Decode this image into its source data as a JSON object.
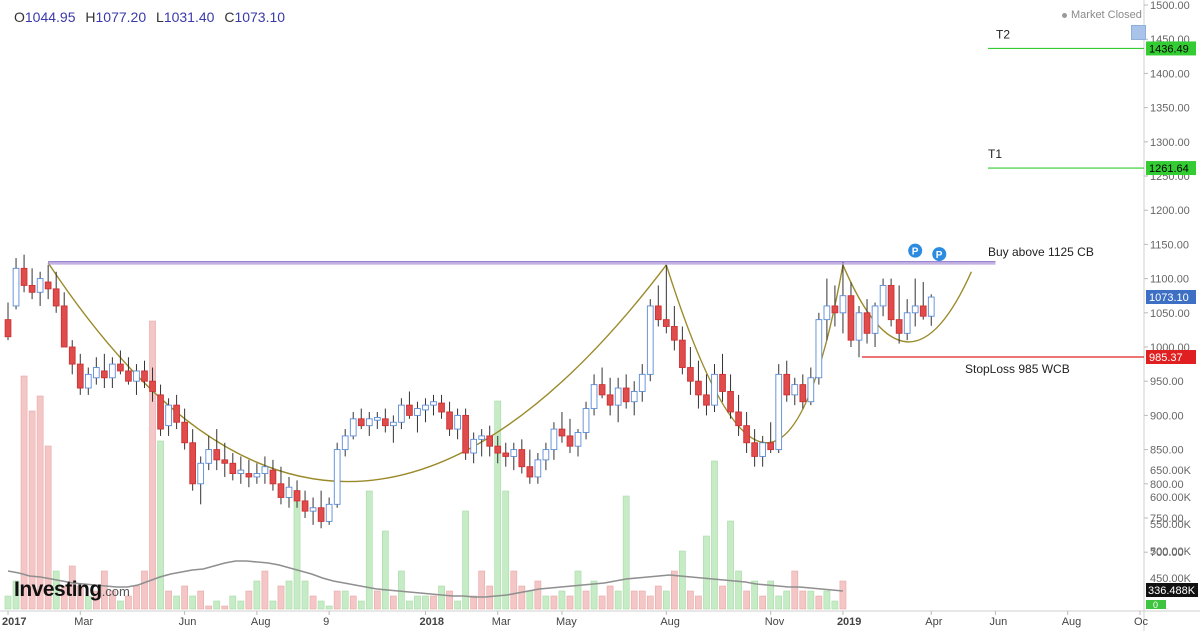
{
  "header": {
    "open_label": "O",
    "open": "1044.95",
    "high_label": "H",
    "high": "1077.20",
    "low_label": "L",
    "low": "1031.40",
    "close_label": "C",
    "close": "1073.10",
    "market_status": "Market Closed"
  },
  "logo": {
    "brand": "Investing",
    "domain": ".com"
  },
  "colors": {
    "up": "#ffffff",
    "up_border": "#5b8bd6",
    "down": "#e04b4b",
    "vol_up": "#c6ecc6",
    "vol_down": "#f4c6c6",
    "ma": "#8f8f8f",
    "resistance": "#b09ad8",
    "curve": "#9a8a2a",
    "target": "#33cc33",
    "stop": "#e02020"
  },
  "chart_data": {
    "type": "candlestick",
    "y_axis": {
      "min": 700,
      "max": 1500,
      "ticks": [
        700,
        750,
        800,
        850,
        900,
        950,
        1000,
        1050,
        1100,
        1150,
        1200,
        1250,
        1300,
        1350,
        1400,
        1450,
        1500
      ]
    },
    "volume_axis": {
      "ticks": [
        "450.00K",
        "500.00K",
        "550.00K",
        "600.00K",
        "650.00K"
      ],
      "current": "336.488K",
      "current_sub": "0"
    },
    "x_labels": [
      {
        "label": "2017",
        "bold": true,
        "i": 0
      },
      {
        "label": "Mar",
        "bold": false,
        "i": 9
      },
      {
        "label": "Jun",
        "bold": false,
        "i": 22
      },
      {
        "label": "Aug",
        "bold": false,
        "i": 31
      },
      {
        "label": "9",
        "bold": false,
        "i": 40
      },
      {
        "label": "2018",
        "bold": true,
        "i": 52
      },
      {
        "label": "Mar",
        "bold": false,
        "i": 61
      },
      {
        "label": "May",
        "bold": false,
        "i": 69
      },
      {
        "label": "Aug",
        "bold": false,
        "i": 82
      },
      {
        "label": "Nov",
        "bold": false,
        "i": 95
      },
      {
        "label": "2019",
        "bold": true,
        "i": 104
      },
      {
        "label": "Apr",
        "bold": false,
        "i": 115
      },
      {
        "label": "Jun",
        "bold": false,
        "i": 123
      },
      {
        "label": "Aug",
        "bold": false,
        "i": 132
      },
      {
        "label": "Oc",
        "bold": false,
        "i": 141
      }
    ],
    "x_slots": 142,
    "candles": [
      [
        1040,
        1065,
        1010,
        1015
      ],
      [
        1060,
        1130,
        1055,
        1115
      ],
      [
        1115,
        1135,
        1080,
        1090
      ],
      [
        1090,
        1115,
        1070,
        1080
      ],
      [
        1080,
        1110,
        1060,
        1100
      ],
      [
        1095,
        1120,
        1070,
        1085
      ],
      [
        1085,
        1110,
        1050,
        1060
      ],
      [
        1060,
        1080,
        1000,
        1000
      ],
      [
        1000,
        1010,
        960,
        975
      ],
      [
        975,
        990,
        930,
        940
      ],
      [
        940,
        970,
        930,
        960
      ],
      [
        955,
        985,
        945,
        970
      ],
      [
        965,
        990,
        940,
        955
      ],
      [
        955,
        985,
        940,
        975
      ],
      [
        975,
        995,
        960,
        965
      ],
      [
        965,
        985,
        945,
        950
      ],
      [
        950,
        975,
        930,
        965
      ],
      [
        965,
        980,
        940,
        950
      ],
      [
        950,
        970,
        920,
        935
      ],
      [
        930,
        945,
        870,
        880
      ],
      [
        885,
        925,
        870,
        915
      ],
      [
        915,
        930,
        880,
        890
      ],
      [
        890,
        910,
        850,
        860
      ],
      [
        860,
        880,
        790,
        800
      ],
      [
        800,
        840,
        770,
        830
      ],
      [
        830,
        870,
        820,
        850
      ],
      [
        850,
        880,
        820,
        835
      ],
      [
        835,
        860,
        810,
        830
      ],
      [
        830,
        845,
        805,
        815
      ],
      [
        815,
        840,
        800,
        820
      ],
      [
        815,
        835,
        795,
        810
      ],
      [
        810,
        830,
        800,
        815
      ],
      [
        815,
        840,
        800,
        825
      ],
      [
        820,
        835,
        790,
        800
      ],
      [
        800,
        825,
        770,
        780
      ],
      [
        780,
        810,
        765,
        795
      ],
      [
        790,
        805,
        765,
        775
      ],
      [
        775,
        790,
        750,
        760
      ],
      [
        760,
        780,
        740,
        765
      ],
      [
        765,
        790,
        735,
        745
      ],
      [
        745,
        780,
        740,
        770
      ],
      [
        770,
        860,
        765,
        850
      ],
      [
        850,
        880,
        840,
        870
      ],
      [
        870,
        905,
        865,
        895
      ],
      [
        895,
        910,
        880,
        885
      ],
      [
        885,
        905,
        870,
        895
      ],
      [
        893,
        905,
        880,
        897
      ],
      [
        895,
        910,
        875,
        885
      ],
      [
        885,
        900,
        860,
        890
      ],
      [
        890,
        925,
        880,
        915
      ],
      [
        915,
        935,
        895,
        900
      ],
      [
        900,
        920,
        875,
        910
      ],
      [
        908,
        925,
        890,
        915
      ],
      [
        915,
        930,
        900,
        920
      ],
      [
        918,
        930,
        895,
        905
      ],
      [
        905,
        920,
        870,
        880
      ],
      [
        880,
        910,
        865,
        900
      ],
      [
        900,
        910,
        835,
        845
      ],
      [
        845,
        875,
        830,
        865
      ],
      [
        865,
        880,
        840,
        870
      ],
      [
        870,
        885,
        840,
        855
      ],
      [
        855,
        870,
        830,
        845
      ],
      [
        845,
        860,
        825,
        840
      ],
      [
        840,
        860,
        820,
        850
      ],
      [
        850,
        865,
        815,
        825
      ],
      [
        825,
        850,
        800,
        810
      ],
      [
        810,
        845,
        800,
        835
      ],
      [
        835,
        860,
        820,
        850
      ],
      [
        850,
        890,
        835,
        880
      ],
      [
        880,
        905,
        860,
        870
      ],
      [
        870,
        895,
        845,
        855
      ],
      [
        855,
        880,
        840,
        875
      ],
      [
        875,
        920,
        865,
        910
      ],
      [
        910,
        960,
        900,
        945
      ],
      [
        945,
        970,
        925,
        930
      ],
      [
        930,
        955,
        900,
        915
      ],
      [
        915,
        955,
        890,
        940
      ],
      [
        940,
        960,
        910,
        920
      ],
      [
        920,
        950,
        900,
        935
      ],
      [
        935,
        975,
        920,
        960
      ],
      [
        960,
        1070,
        950,
        1060
      ],
      [
        1060,
        1090,
        1030,
        1040
      ],
      [
        1040,
        1120,
        1020,
        1030
      ],
      [
        1030,
        1060,
        995,
        1010
      ],
      [
        1010,
        1030,
        960,
        970
      ],
      [
        970,
        1000,
        930,
        950
      ],
      [
        950,
        980,
        910,
        930
      ],
      [
        930,
        960,
        900,
        915
      ],
      [
        915,
        975,
        905,
        960
      ],
      [
        960,
        990,
        920,
        935
      ],
      [
        935,
        960,
        895,
        905
      ],
      [
        905,
        930,
        870,
        885
      ],
      [
        885,
        905,
        845,
        860
      ],
      [
        860,
        880,
        825,
        840
      ],
      [
        840,
        870,
        825,
        860
      ],
      [
        860,
        890,
        845,
        850
      ],
      [
        850,
        975,
        845,
        960
      ],
      [
        960,
        980,
        920,
        930
      ],
      [
        930,
        955,
        915,
        945
      ],
      [
        945,
        960,
        910,
        920
      ],
      [
        920,
        970,
        915,
        955
      ],
      [
        955,
        1050,
        945,
        1040
      ],
      [
        1040,
        1100,
        1010,
        1060
      ],
      [
        1060,
        1090,
        1030,
        1050
      ],
      [
        1050,
        1125,
        1020,
        1075
      ],
      [
        1075,
        1095,
        1000,
        1010
      ],
      [
        1010,
        1060,
        985,
        1050
      ],
      [
        1050,
        1070,
        1005,
        1020
      ],
      [
        1020,
        1065,
        1000,
        1060
      ],
      [
        1060,
        1100,
        1045,
        1090
      ],
      [
        1090,
        1100,
        1030,
        1040
      ],
      [
        1040,
        1090,
        1005,
        1020
      ],
      [
        1020,
        1070,
        1010,
        1050
      ],
      [
        1050,
        1100,
        1030,
        1060
      ],
      [
        1060,
        1095,
        1040,
        1045
      ],
      [
        1045,
        1077,
        1031,
        1073
      ]
    ],
    "volumes": [
      [
        1,
        395
      ],
      [
        1,
        410
      ],
      [
        0,
        615
      ],
      [
        0,
        580
      ],
      [
        0,
        595
      ],
      [
        0,
        545
      ],
      [
        1,
        420
      ],
      [
        0,
        405
      ],
      [
        0,
        425
      ],
      [
        0,
        405
      ],
      [
        1,
        395
      ],
      [
        0,
        400
      ],
      [
        0,
        420
      ],
      [
        0,
        400
      ],
      [
        1,
        390
      ],
      [
        0,
        395
      ],
      [
        0,
        405
      ],
      [
        0,
        420
      ],
      [
        0,
        670
      ],
      [
        1,
        550
      ],
      [
        0,
        400
      ],
      [
        1,
        395
      ],
      [
        0,
        405
      ],
      [
        1,
        395
      ],
      [
        0,
        400
      ],
      [
        0,
        385
      ],
      [
        1,
        390
      ],
      [
        0,
        385
      ],
      [
        1,
        395
      ],
      [
        1,
        390
      ],
      [
        0,
        400
      ],
      [
        1,
        410
      ],
      [
        0,
        420
      ],
      [
        1,
        390
      ],
      [
        0,
        405
      ],
      [
        1,
        410
      ],
      [
        1,
        500
      ],
      [
        1,
        410
      ],
      [
        0,
        395
      ],
      [
        1,
        390
      ],
      [
        1,
        385
      ],
      [
        0,
        400
      ],
      [
        1,
        400
      ],
      [
        0,
        395
      ],
      [
        1,
        390
      ],
      [
        1,
        500
      ],
      [
        0,
        400
      ],
      [
        1,
        460
      ],
      [
        0,
        395
      ],
      [
        1,
        420
      ],
      [
        1,
        390
      ],
      [
        1,
        395
      ],
      [
        1,
        395
      ],
      [
        0,
        395
      ],
      [
        1,
        405
      ],
      [
        0,
        400
      ],
      [
        1,
        390
      ],
      [
        1,
        480
      ],
      [
        0,
        395
      ],
      [
        0,
        420
      ],
      [
        0,
        405
      ],
      [
        1,
        590
      ],
      [
        1,
        500
      ],
      [
        0,
        420
      ],
      [
        0,
        405
      ],
      [
        1,
        400
      ],
      [
        0,
        410
      ],
      [
        1,
        395
      ],
      [
        0,
        395
      ],
      [
        1,
        400
      ],
      [
        0,
        395
      ],
      [
        1,
        420
      ],
      [
        0,
        400
      ],
      [
        1,
        410
      ],
      [
        0,
        395
      ],
      [
        0,
        405
      ],
      [
        1,
        400
      ],
      [
        1,
        495
      ],
      [
        0,
        400
      ],
      [
        0,
        400
      ],
      [
        0,
        395
      ],
      [
        0,
        405
      ],
      [
        1,
        400
      ],
      [
        0,
        420
      ],
      [
        1,
        440
      ],
      [
        0,
        400
      ],
      [
        0,
        395
      ],
      [
        1,
        455
      ],
      [
        1,
        530
      ],
      [
        0,
        405
      ],
      [
        1,
        470
      ],
      [
        1,
        420
      ],
      [
        0,
        400
      ],
      [
        1,
        410
      ],
      [
        0,
        395
      ],
      [
        1,
        410
      ],
      [
        1,
        395
      ],
      [
        1,
        400
      ],
      [
        0,
        420
      ],
      [
        0,
        400
      ],
      [
        1,
        400
      ],
      [
        0,
        395
      ],
      [
        1,
        400
      ],
      [
        1,
        390
      ],
      [
        0,
        410
      ]
    ],
    "moving_average": [
      450,
      448,
      445,
      444,
      442,
      440,
      438,
      437,
      436,
      435,
      434,
      434,
      436,
      440,
      444,
      447,
      449,
      451,
      452,
      455,
      458,
      460,
      460,
      459,
      458,
      456,
      453,
      450,
      447,
      443,
      440,
      438,
      436,
      434,
      432,
      431,
      430,
      429,
      428,
      427,
      426,
      425,
      425,
      424,
      424,
      425,
      426,
      428,
      430,
      432,
      433,
      434,
      435,
      436,
      437,
      438,
      440,
      442,
      443,
      444,
      445,
      446,
      445,
      444,
      443,
      442,
      441,
      440,
      439,
      437,
      436,
      435,
      434,
      434,
      433,
      432,
      431,
      430
    ],
    "levels": {
      "resistance": {
        "value": 1123,
        "label": "Buy above 1125 CB",
        "from_i": 5,
        "to_i": 123
      },
      "t2": {
        "value": 1436.49,
        "label": "T2",
        "tag": "1436.49",
        "from_i": 108,
        "to_i": 138
      },
      "t1": {
        "value": 1261.64,
        "label": "T1",
        "tag": "1261.64",
        "from_i": 108,
        "to_i": 138
      },
      "stop": {
        "value": 985.37,
        "label": "StopLoss 985 WCB",
        "tag": "985.37",
        "from_i": 94,
        "to_i": 138
      },
      "last": {
        "value": 1073.1,
        "tag": "1073.10"
      }
    },
    "markers": [
      {
        "i": 113,
        "value": 1135,
        "label": "P"
      },
      {
        "i": 116,
        "value": 1130,
        "label": "P"
      }
    ]
  }
}
